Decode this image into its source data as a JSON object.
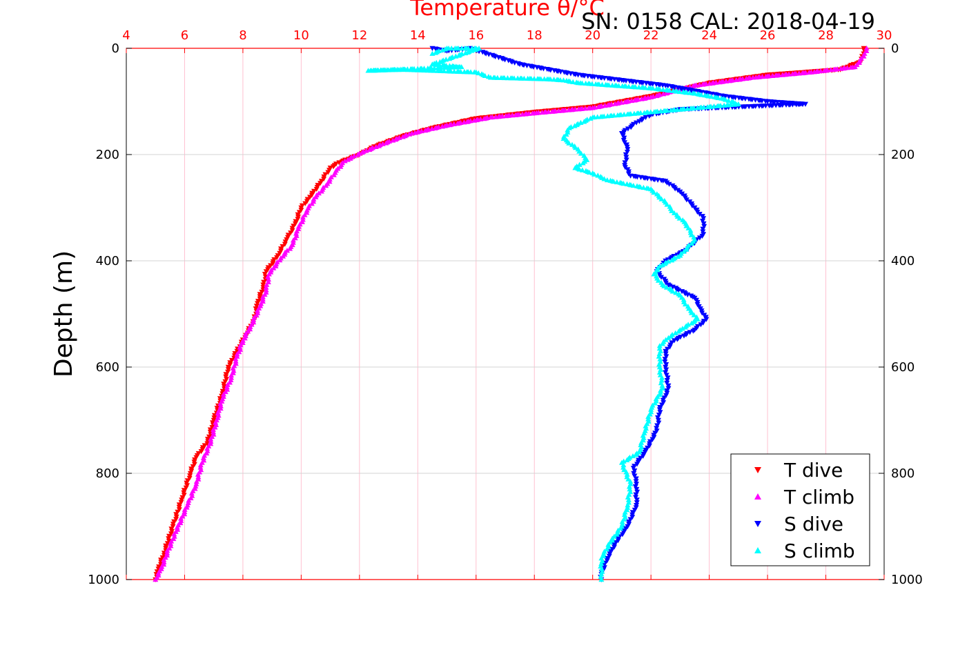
{
  "chart_data": {
    "type": "scatter",
    "top_axis_title": "Temperature θ/°C",
    "annotation": "SN: 0158  CAL: 2018-04-19",
    "ylabel": "Depth (m)",
    "xlim": [
      4,
      30
    ],
    "ylim": [
      0,
      1000
    ],
    "y_reversed": true,
    "x_ticks": [
      "4",
      "6",
      "8",
      "10",
      "12",
      "14",
      "16",
      "18",
      "20",
      "22",
      "24",
      "26",
      "28",
      "30"
    ],
    "y_ticks": [
      "0",
      "200",
      "400",
      "600",
      "800",
      "1000"
    ],
    "grid": true,
    "legend_position": "bottom-right",
    "colors": {
      "t_dive": "#ff0000",
      "t_climb": "#ff00ff",
      "s_dive": "#0000ff",
      "s_climb": "#00ffff",
      "top_axis": "#ff0000",
      "grid_x": "#ffc0d0",
      "grid_y": "#d3d3d3"
    },
    "series": [
      {
        "name": "T dive",
        "marker": "triangle-down",
        "color": "#ff0000",
        "points": [
          [
            29.3,
            0
          ],
          [
            29.3,
            10
          ],
          [
            29.2,
            25
          ],
          [
            28.5,
            40
          ],
          [
            26.0,
            50
          ],
          [
            24.0,
            65
          ],
          [
            22.0,
            90
          ],
          [
            20.0,
            110
          ],
          [
            18.0,
            120
          ],
          [
            16.0,
            132
          ],
          [
            14.5,
            150
          ],
          [
            13.5,
            165
          ],
          [
            12.5,
            185
          ],
          [
            12.0,
            200
          ],
          [
            11.3,
            215
          ],
          [
            11.0,
            225
          ],
          [
            10.7,
            250
          ],
          [
            10.3,
            280
          ],
          [
            10.0,
            300
          ],
          [
            9.8,
            330
          ],
          [
            9.5,
            360
          ],
          [
            9.2,
            390
          ],
          [
            8.8,
            420
          ],
          [
            8.7,
            450
          ],
          [
            8.5,
            480
          ],
          [
            8.4,
            510
          ],
          [
            8.1,
            540
          ],
          [
            7.8,
            570
          ],
          [
            7.5,
            600
          ],
          [
            7.3,
            650
          ],
          [
            7.0,
            700
          ],
          [
            6.8,
            740
          ],
          [
            6.4,
            770
          ],
          [
            6.2,
            800
          ],
          [
            5.9,
            850
          ],
          [
            5.6,
            900
          ],
          [
            5.3,
            950
          ],
          [
            5.1,
            980
          ],
          [
            5.0,
            1000
          ]
        ]
      },
      {
        "name": "T climb",
        "marker": "triangle-up",
        "color": "#ff00ff",
        "points": [
          [
            29.4,
            0
          ],
          [
            29.3,
            15
          ],
          [
            29.0,
            35
          ],
          [
            27.5,
            45
          ],
          [
            25.5,
            55
          ],
          [
            23.5,
            70
          ],
          [
            22.0,
            92
          ],
          [
            20.0,
            112
          ],
          [
            18.0,
            122
          ],
          [
            16.5,
            130
          ],
          [
            15.0,
            145
          ],
          [
            13.8,
            160
          ],
          [
            12.8,
            180
          ],
          [
            12.0,
            198
          ],
          [
            11.5,
            212
          ],
          [
            11.2,
            230
          ],
          [
            10.9,
            255
          ],
          [
            10.5,
            280
          ],
          [
            10.2,
            305
          ],
          [
            9.9,
            340
          ],
          [
            9.7,
            370
          ],
          [
            9.3,
            395
          ],
          [
            8.9,
            425
          ],
          [
            8.8,
            455
          ],
          [
            8.6,
            485
          ],
          [
            8.3,
            520
          ],
          [
            8.0,
            550
          ],
          [
            7.8,
            580
          ],
          [
            7.6,
            620
          ],
          [
            7.3,
            660
          ],
          [
            7.1,
            700
          ],
          [
            6.9,
            740
          ],
          [
            6.6,
            780
          ],
          [
            6.4,
            820
          ],
          [
            6.1,
            860
          ],
          [
            5.7,
            910
          ],
          [
            5.4,
            950
          ],
          [
            5.2,
            980
          ],
          [
            5.0,
            1000
          ]
        ]
      },
      {
        "name": "S dive",
        "marker": "triangle-down",
        "color": "#0000ff",
        "points": [
          [
            14.5,
            0
          ],
          [
            15.0,
            5
          ],
          [
            15.8,
            0
          ],
          [
            17.5,
            30
          ],
          [
            18.5,
            40
          ],
          [
            19.5,
            50
          ],
          [
            21.0,
            60
          ],
          [
            22.5,
            70
          ],
          [
            23.5,
            80
          ],
          [
            24.5,
            90
          ],
          [
            26.0,
            100
          ],
          [
            27.3,
            105
          ],
          [
            23.0,
            115
          ],
          [
            22.0,
            125
          ],
          [
            21.5,
            140
          ],
          [
            21.0,
            160
          ],
          [
            21.2,
            190
          ],
          [
            21.1,
            220
          ],
          [
            21.3,
            240
          ],
          [
            22.5,
            250
          ],
          [
            23.0,
            270
          ],
          [
            23.5,
            300
          ],
          [
            23.8,
            320
          ],
          [
            23.8,
            350
          ],
          [
            23.2,
            380
          ],
          [
            22.5,
            400
          ],
          [
            22.2,
            420
          ],
          [
            22.6,
            445
          ],
          [
            23.5,
            470
          ],
          [
            23.7,
            490
          ],
          [
            23.9,
            510
          ],
          [
            23.5,
            530
          ],
          [
            22.8,
            550
          ],
          [
            22.5,
            570
          ],
          [
            22.5,
            600
          ],
          [
            22.6,
            640
          ],
          [
            22.3,
            680
          ],
          [
            22.2,
            720
          ],
          [
            21.8,
            760
          ],
          [
            21.4,
            790
          ],
          [
            21.5,
            820
          ],
          [
            21.5,
            860
          ],
          [
            21.2,
            900
          ],
          [
            20.8,
            930
          ],
          [
            20.5,
            960
          ],
          [
            20.3,
            990
          ],
          [
            20.3,
            1000
          ]
        ]
      },
      {
        "name": "S climb",
        "marker": "triangle-up",
        "color": "#00ffff",
        "points": [
          [
            14.5,
            10
          ],
          [
            15.0,
            0
          ],
          [
            16.1,
            0
          ],
          [
            14.5,
            30
          ],
          [
            15.5,
            35
          ],
          [
            12.3,
            42
          ],
          [
            13.5,
            40
          ],
          [
            16.0,
            45
          ],
          [
            16.5,
            55
          ],
          [
            18.5,
            58
          ],
          [
            19.0,
            60
          ],
          [
            19.5,
            65
          ],
          [
            22.0,
            75
          ],
          [
            23.5,
            85
          ],
          [
            24.5,
            95
          ],
          [
            25.0,
            105
          ],
          [
            20.0,
            130
          ],
          [
            19.2,
            150
          ],
          [
            19.0,
            170
          ],
          [
            19.5,
            190
          ],
          [
            19.8,
            210
          ],
          [
            19.4,
            225
          ],
          [
            20.0,
            235
          ],
          [
            20.5,
            248
          ],
          [
            22.0,
            265
          ],
          [
            22.5,
            290
          ],
          [
            22.8,
            310
          ],
          [
            23.2,
            330
          ],
          [
            23.5,
            360
          ],
          [
            23.0,
            390
          ],
          [
            22.3,
            410
          ],
          [
            22.1,
            425
          ],
          [
            22.4,
            445
          ],
          [
            23.0,
            465
          ],
          [
            23.3,
            490
          ],
          [
            23.6,
            510
          ],
          [
            23.0,
            530
          ],
          [
            22.6,
            545
          ],
          [
            22.3,
            560
          ],
          [
            22.3,
            600
          ],
          [
            22.4,
            640
          ],
          [
            22.0,
            680
          ],
          [
            21.8,
            720
          ],
          [
            21.6,
            760
          ],
          [
            21.0,
            780
          ],
          [
            21.3,
            820
          ],
          [
            21.2,
            860
          ],
          [
            21.0,
            900
          ],
          [
            20.6,
            930
          ],
          [
            20.3,
            960
          ],
          [
            20.3,
            990
          ],
          [
            20.3,
            1000
          ]
        ]
      }
    ]
  }
}
